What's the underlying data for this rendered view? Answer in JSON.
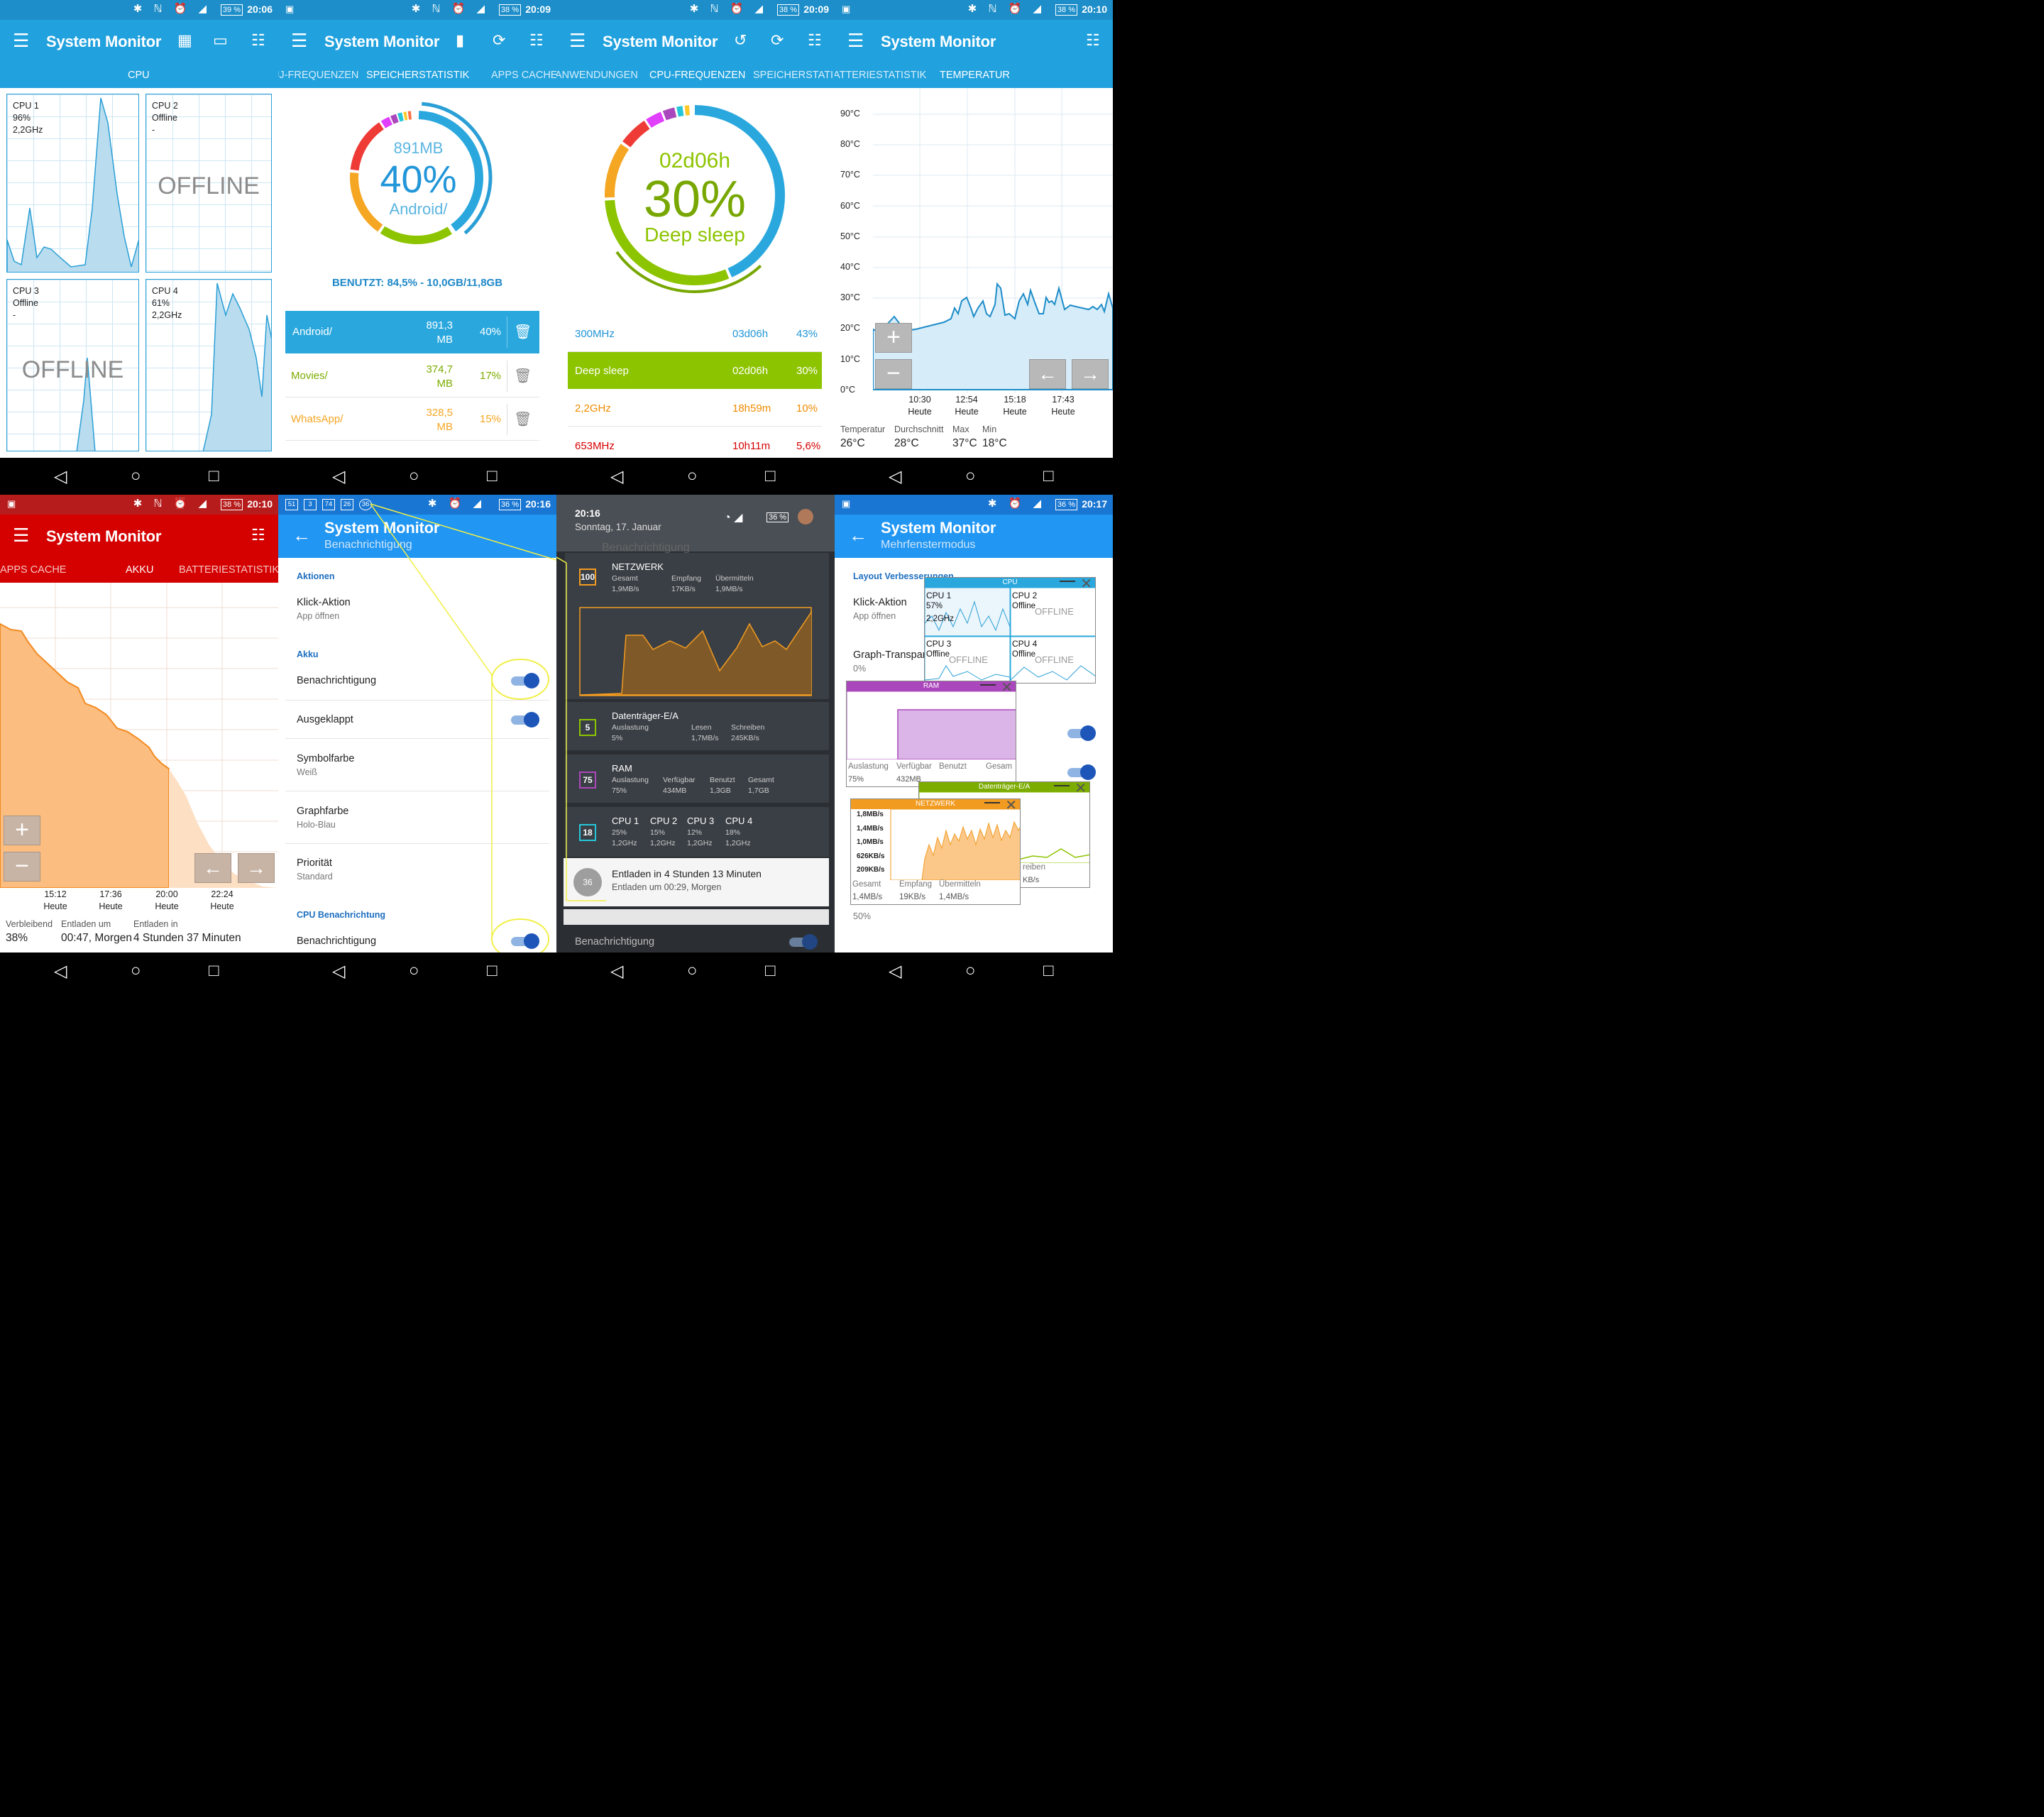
{
  "app_title": "System Monitor",
  "status": {
    "times": [
      "20:06",
      "20:09",
      "20:09",
      "20:10",
      "20:10",
      "20:16",
      "20:17"
    ],
    "battery": [
      "39 %",
      "38 %",
      "38 %",
      "38 %",
      "38 %",
      "36 %",
      "36 %"
    ]
  },
  "panel1": {
    "tab": "CPU",
    "cpus": [
      {
        "name": "CPU 1",
        "state": "96%",
        "freq": "2,2GHz"
      },
      {
        "name": "CPU 2",
        "state": "Offline",
        "freq": "-"
      },
      {
        "name": "CPU 3",
        "state": "Offline",
        "freq": "-"
      },
      {
        "name": "CPU 4",
        "state": "61%",
        "freq": "2,2GHz"
      }
    ],
    "offline_label": "OFFLINE"
  },
  "panel2": {
    "tabs": [
      "GPUJ-FREQUENZEN",
      "SPEICHERSTATISTIK",
      "APPS CACHE"
    ],
    "ring_top": "891MB",
    "ring_pct": "40%",
    "ring_label": "Android/",
    "used_label": "BENUTZT: 84,5% - 10,0GB/11,8GB",
    "rows": [
      {
        "name": "Android/",
        "size1": "891,3",
        "size2": "MB",
        "pct": "40%"
      },
      {
        "name": "Movies/",
        "size1": "374,7",
        "size2": "MB",
        "pct": "17%"
      },
      {
        "name": "WhatsApp/",
        "size1": "328,5",
        "size2": "MB",
        "pct": "15%"
      }
    ]
  },
  "panel3": {
    "tabs": [
      "ANWENDUNGEN",
      "CPU-FREQUENZEN",
      "SPEICHERSTATI"
    ],
    "ring_top": "02d06h",
    "ring_pct": "30%",
    "ring_label": "Deep sleep",
    "rows": [
      {
        "name": "300MHz",
        "time": "03d06h",
        "pct": "43%"
      },
      {
        "name": "Deep sleep",
        "time": "02d06h",
        "pct": "30%"
      },
      {
        "name": "2,2GHz",
        "time": "18h59m",
        "pct": "10%"
      },
      {
        "name": "653MHz",
        "time": "10h11m",
        "pct": "5,6%"
      }
    ]
  },
  "panel4": {
    "tabs": [
      "ATTERIESTATISTIK",
      "TEMPERATUR"
    ],
    "y_ticks": [
      "90°C",
      "80°C",
      "70°C",
      "60°C",
      "50°C",
      "40°C",
      "30°C",
      "20°C",
      "10°C",
      "0°C"
    ],
    "x_ticks": [
      {
        "t": "10:30",
        "d": "Heute"
      },
      {
        "t": "12:54",
        "d": "Heute"
      },
      {
        "t": "15:18",
        "d": "Heute"
      },
      {
        "t": "17:43",
        "d": "Heute"
      }
    ],
    "stats": [
      {
        "label": "Temperatur",
        "value": "26°C"
      },
      {
        "label": "Durchschnitt",
        "value": "28°C"
      },
      {
        "label": "Max",
        "value": "37°C"
      },
      {
        "label": "Min",
        "value": "18°C"
      }
    ]
  },
  "panel5": {
    "tabs": [
      "APPS CACHE",
      "AKKU",
      "BATTERIESTATISTIK"
    ],
    "x_ticks": [
      {
        "t": "15:12",
        "d": "Heute"
      },
      {
        "t": "17:36",
        "d": "Heute"
      },
      {
        "t": "20:00",
        "d": "Heute"
      },
      {
        "t": "22:24",
        "d": "Heute"
      }
    ],
    "stats": [
      {
        "label": "Verbleibend",
        "value": "38%"
      },
      {
        "label": "Entladen um",
        "value": "00:47, Morgen"
      },
      {
        "label": "Entladen in",
        "value": "4 Stunden 37 Minuten"
      }
    ]
  },
  "panel6": {
    "subtitle": "Benachrichtigung",
    "status_badges": [
      "51",
      "3",
      "74",
      "26",
      "36"
    ],
    "sections": {
      "actions": "Aktionen",
      "battery": "Akku",
      "cpu": "CPU Benachrichtung"
    },
    "items": [
      {
        "title": "Klick-Aktion",
        "sub": "App öffnen"
      },
      {
        "title": "Benachrichtigung"
      },
      {
        "title": "Ausgeklappt"
      },
      {
        "title": "Symbolfarbe",
        "sub": "Weiß"
      },
      {
        "title": "Graphfarbe",
        "sub": "Holo-Blau"
      },
      {
        "title": "Priorität",
        "sub": "Standard"
      },
      {
        "title": "Benachrichtigung"
      }
    ]
  },
  "panel7": {
    "time": "20:16",
    "date": "Sonntag, 17. Januar",
    "bg_label": "Benachrichtigung",
    "network": {
      "title": "NETZWERK",
      "icon": "100",
      "cols": [
        {
          "l": "Gesamt",
          "v": "1,9MB/s"
        },
        {
          "l": "Empfang",
          "v": "17KB/s"
        },
        {
          "l": "Übermitteln",
          "v": "1,9MB/s"
        }
      ]
    },
    "disk": {
      "title": "Datenträger-E/A",
      "icon": "5",
      "cols": [
        {
          "l": "Auslastung",
          "v": "5%"
        },
        {
          "l": "Lesen",
          "v": "1,7MB/s"
        },
        {
          "l": "Schreiben",
          "v": "245KB/s"
        }
      ]
    },
    "ram": {
      "title": "RAM",
      "icon": "75",
      "cols": [
        {
          "l": "Auslastung",
          "v": "75%"
        },
        {
          "l": "Verfügbar",
          "v": "434MB"
        },
        {
          "l": "Benutzt",
          "v": "1,3GB"
        },
        {
          "l": "Gesamt",
          "v": "1,7GB"
        }
      ]
    },
    "cpu": {
      "icon": "18",
      "cols": [
        {
          "l": "CPU 1",
          "v": "25%",
          "f": "1,2GHz"
        },
        {
          "l": "CPU 2",
          "v": "15%",
          "f": "1,2GHz"
        },
        {
          "l": "CPU 3",
          "v": "12%",
          "f": "1,2GHz"
        },
        {
          "l": "CPU 4",
          "v": "18%",
          "f": "1,2GHz"
        }
      ]
    },
    "battery": {
      "title": "Entladen in 4 Stunden 13 Minuten",
      "sub": "Entladen um 00:29, Morgen",
      "icon": "36"
    }
  },
  "panel8": {
    "subtitle": "Mehrfenstermodus",
    "section": "Layout Verbesserungen",
    "items": [
      {
        "title": "Klick-Aktion",
        "sub": "App öffnen"
      },
      {
        "title": "Graph-Transpar",
        "sub": "0%"
      }
    ],
    "bottom_value": "50%",
    "cpu_win": {
      "title": "CPU",
      "cells": [
        {
          "n": "CPU 1",
          "a": "57%",
          "b": "2,2GHz"
        },
        {
          "n": "CPU 2",
          "a": "Offline",
          "b": "OFFLINE"
        },
        {
          "n": "CPU 3",
          "a": "Offline",
          "b": "OFFLINE"
        },
        {
          "n": "CPU 4",
          "a": "Offline",
          "b": "OFFLINE"
        }
      ]
    },
    "ram_win": {
      "title": "RAM",
      "labels": [
        "Auslastung",
        "Verfügbar",
        "Benutzt",
        "Gesam"
      ],
      "values": [
        "75%",
        "432MB"
      ]
    },
    "disk_win": {
      "title": "Datenträger-E/A",
      "labels": [
        "reiben"
      ],
      "values": [
        "KB/s"
      ]
    },
    "net_win": {
      "title": "NETZWERK",
      "ticks": [
        "1,8MB/s",
        "1,4MB/s",
        "1,0MB/s",
        "626KB/s",
        "209KB/s"
      ],
      "labels": [
        "Gesamt",
        "Empfang",
        "Übermitteln"
      ],
      "values": [
        "1,4MB/s",
        "19KB/s",
        "1,4MB/s"
      ]
    }
  },
  "colors": {
    "primary": "#21a1dd",
    "primary_dark": "#1d8ec9",
    "red_primary": "#d50000",
    "red_dark": "#b71c1c",
    "blue_app": "#2196f3",
    "green": "#8dc400",
    "orange": "#f5a623"
  }
}
